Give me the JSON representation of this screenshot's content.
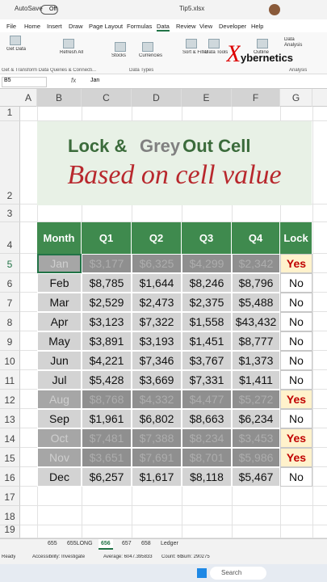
{
  "title_bar": {
    "autosave": "AutoSave",
    "autosave_state": "Off",
    "file": "Tip5.xlsx"
  },
  "ribbon": {
    "tabs": [
      "File",
      "Home",
      "Insert",
      "Draw",
      "Page Layout",
      "Formulas",
      "Data",
      "Review",
      "View",
      "Developer",
      "Help"
    ],
    "buttons": [
      "Get Data",
      "Refresh All",
      "Stocks",
      "Currencies",
      "Sort & Filter",
      "Data Tools",
      "Outline",
      "Data Analysis"
    ],
    "groups": [
      "Get & Transform Data",
      "Queries & Connecti...",
      "Data Types",
      "Analysis"
    ],
    "watermark": [
      "X",
      "ybernetics"
    ]
  },
  "formula_bar": {
    "name_box": "B5",
    "fx": "fx",
    "content": "Jan"
  },
  "sheet": {
    "columns": [
      "A",
      "B",
      "C",
      "D",
      "E",
      "F",
      "G"
    ],
    "rows": [
      1,
      2,
      3,
      4,
      5,
      6,
      7,
      8,
      9,
      10,
      11,
      12,
      13,
      14,
      15,
      16,
      17,
      18,
      19
    ]
  },
  "banner": {
    "title": [
      "Lock & ",
      "Grey",
      " Out Cell"
    ],
    "subtitle": "Based on cell value"
  },
  "table": {
    "header": [
      "Month",
      "Q1",
      "Q2",
      "Q3",
      "Q4",
      "Lock"
    ],
    "rows": [
      {
        "cells": [
          "Jan",
          "$3,177",
          "$6,325",
          "$4,299",
          "$2,342",
          "Yes"
        ],
        "greyed": true
      },
      {
        "cells": [
          "Feb",
          "$8,785",
          "$1,644",
          "$8,246",
          "$8,796",
          "No"
        ],
        "greyed": false
      },
      {
        "cells": [
          "Mar",
          "$2,529",
          "$2,473",
          "$2,375",
          "$5,488",
          "No"
        ],
        "greyed": false
      },
      {
        "cells": [
          "Apr",
          "$3,123",
          "$7,322",
          "$1,558",
          "$43,432",
          "No"
        ],
        "greyed": false
      },
      {
        "cells": [
          "May",
          "$3,891",
          "$3,193",
          "$1,451",
          "$8,777",
          "No"
        ],
        "greyed": false
      },
      {
        "cells": [
          "Jun",
          "$4,221",
          "$7,346",
          "$3,767",
          "$1,373",
          "No"
        ],
        "greyed": false
      },
      {
        "cells": [
          "Jul",
          "$5,428",
          "$3,669",
          "$7,331",
          "$1,411",
          "No"
        ],
        "greyed": false
      },
      {
        "cells": [
          "Aug",
          "$8,768",
          "$4,332",
          "$4,477",
          "$5,272",
          "Yes"
        ],
        "greyed": true
      },
      {
        "cells": [
          "Sep",
          "$1,961",
          "$6,802",
          "$8,663",
          "$6,234",
          "No"
        ],
        "greyed": false
      },
      {
        "cells": [
          "Oct",
          "$7,481",
          "$7,388",
          "$8,234",
          "$3,453",
          "Yes"
        ],
        "greyed": true
      },
      {
        "cells": [
          "Nov",
          "$3,651",
          "$7,691",
          "$8,701",
          "$5,986",
          "Yes"
        ],
        "greyed": true
      },
      {
        "cells": [
          "Dec",
          "$6,257",
          "$1,617",
          "$8,118",
          "$5,467",
          "No"
        ],
        "greyed": false
      }
    ]
  },
  "sheet_tabs": [
    "655",
    "655LONG",
    "656",
    "657",
    "658",
    "Ledger"
  ],
  "status": {
    "ready": "Ready",
    "accessibility": "Accessibility: Investigate",
    "average": "Average: 6047.395833",
    "count": "Count: 60",
    "sum": "Sum: 290275"
  },
  "taskbar": {
    "search": "Search"
  }
}
